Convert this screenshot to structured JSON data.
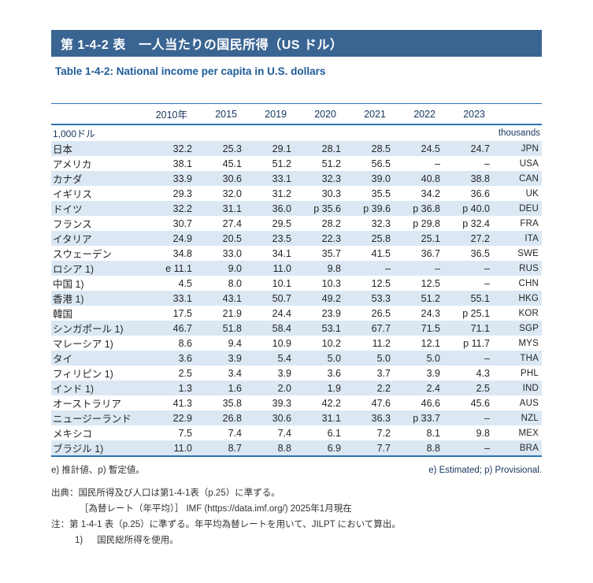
{
  "header": {
    "title_jp": "第 1-4-2 表　一人当たりの国民所得（US ドル）",
    "title_en": "Table 1-4-2: National income per capita in U.S. dollars"
  },
  "table": {
    "unit_jp": "1,000ドル",
    "unit_en": "thousands",
    "columns": [
      "2010年",
      "2015",
      "2019",
      "2020",
      "2021",
      "2022",
      "2023"
    ],
    "rows": [
      {
        "country": "日本",
        "values": [
          "32.2",
          "25.3",
          "29.1",
          "28.1",
          "28.5",
          "24.5",
          "24.7"
        ],
        "code": "JPN"
      },
      {
        "country": "アメリカ",
        "values": [
          "38.1",
          "45.1",
          "51.2",
          "51.2",
          "56.5",
          "–",
          "–"
        ],
        "code": "USA"
      },
      {
        "country": "カナダ",
        "values": [
          "33.9",
          "30.6",
          "33.1",
          "32.3",
          "39.0",
          "40.8",
          "38.8"
        ],
        "code": "CAN"
      },
      {
        "country": "イギリス",
        "values": [
          "29.3",
          "32.0",
          "31.2",
          "30.3",
          "35.5",
          "34.2",
          "36.6"
        ],
        "code": "UK"
      },
      {
        "country": "ドイツ",
        "values": [
          "32.2",
          "31.1",
          "36.0",
          "p 35.6",
          "p 39.6",
          "p 36.8",
          "p 40.0"
        ],
        "code": "DEU"
      },
      {
        "country": "フランス",
        "values": [
          "30.7",
          "27.4",
          "29.5",
          "28.2",
          "32.3",
          "p 29.8",
          "p 32.4"
        ],
        "code": "FRA"
      },
      {
        "country": "イタリア",
        "values": [
          "24.9",
          "20.5",
          "23.5",
          "22.3",
          "25.8",
          "25.1",
          "27.2"
        ],
        "code": "ITA"
      },
      {
        "country": "スウェーデン",
        "values": [
          "34.8",
          "33.0",
          "34.1",
          "35.7",
          "41.5",
          "36.7",
          "36.5"
        ],
        "code": "SWE"
      },
      {
        "country": "ロシア 1)",
        "values": [
          "e 11.1",
          "9.0",
          "11.0",
          "9.8",
          "–",
          "–",
          "–"
        ],
        "code": "RUS"
      },
      {
        "country": "中国 1)",
        "values": [
          "4.5",
          "8.0",
          "10.1",
          "10.3",
          "12.5",
          "12.5",
          "–"
        ],
        "code": "CHN"
      },
      {
        "country": "香港 1)",
        "values": [
          "33.1",
          "43.1",
          "50.7",
          "49.2",
          "53.3",
          "51.2",
          "55.1"
        ],
        "code": "HKG"
      },
      {
        "country": "韓国",
        "values": [
          "17.5",
          "21.9",
          "24.4",
          "23.9",
          "26.5",
          "24.3",
          "p 25.1"
        ],
        "code": "KOR"
      },
      {
        "country": "シンガポール 1)",
        "values": [
          "46.7",
          "51.8",
          "58.4",
          "53.1",
          "67.7",
          "71.5",
          "71.1"
        ],
        "code": "SGP"
      },
      {
        "country": "マレーシア 1)",
        "values": [
          "8.6",
          "9.4",
          "10.9",
          "10.2",
          "11.2",
          "12.1",
          "p 11.7"
        ],
        "code": "MYS"
      },
      {
        "country": "タイ",
        "values": [
          "3.6",
          "3.9",
          "5.4",
          "5.0",
          "5.0",
          "5.0",
          "–"
        ],
        "code": "THA"
      },
      {
        "country": "フィリピン 1)",
        "values": [
          "2.5",
          "3.4",
          "3.9",
          "3.6",
          "3.7",
          "3.9",
          "4.3"
        ],
        "code": "PHL"
      },
      {
        "country": "インド 1)",
        "values": [
          "1.3",
          "1.6",
          "2.0",
          "1.9",
          "2.2",
          "2.4",
          "2.5"
        ],
        "code": "IND"
      },
      {
        "country": "オーストラリア",
        "values": [
          "41.3",
          "35.8",
          "39.3",
          "42.2",
          "47.6",
          "46.6",
          "45.6"
        ],
        "code": "AUS"
      },
      {
        "country": "ニュージーランド",
        "values": [
          "22.9",
          "26.8",
          "30.6",
          "31.1",
          "36.3",
          "p 33.7",
          "–"
        ],
        "code": "NZL"
      },
      {
        "country": "メキシコ",
        "values": [
          "7.5",
          "7.4",
          "7.4",
          "6.1",
          "7.2",
          "8.1",
          "9.8"
        ],
        "code": "MEX"
      },
      {
        "country": "ブラジル 1)",
        "values": [
          "11.0",
          "8.7",
          "8.8",
          "6.9",
          "7.7",
          "8.8",
          "–"
        ],
        "code": "BRA"
      }
    ]
  },
  "notes": {
    "legend_jp": "e) 推計値、p) 暫定値。",
    "legend_en": "e) Estimated; p) Provisional.",
    "source_line_1": "出典：国民所得及び人口は第1-4-1表（p.25）に準ずる。",
    "source_line_2": "［為替レート（年平均）］ IMF (https://data.imf.org/) 2025年1月現在",
    "note_line_1": "注：第 1-4-1 表（p.25）に準ずる。年平均為替レートを用いて、JILPT において算出。",
    "note_line_2_label": "1)",
    "note_line_2_text": "国民総所得を使用。"
  },
  "colors": {
    "banner_bg": "#3A6593",
    "subtitle_text": "#1F5C99",
    "rule_blue": "#2E74B5",
    "shaded_row_bg": "#DBE8F4",
    "navy_text": "#17365D",
    "body_text": "#262626"
  }
}
